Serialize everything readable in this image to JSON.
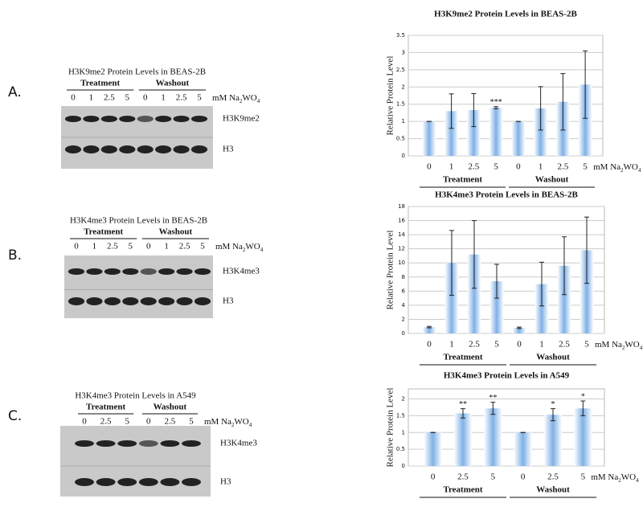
{
  "chart_data": [
    {
      "type": "bar",
      "title": "H3K9me2 Protein Levels in BEAS-2B",
      "ylabel": "Relative Protein Level",
      "categories": [
        "0",
        "1",
        "2.5",
        "5",
        "0",
        "1",
        "2.5",
        "5"
      ],
      "values": [
        1,
        1.3,
        1.33,
        1.4,
        1,
        1.38,
        1.57,
        2.07
      ],
      "errors": [
        0,
        0.5,
        0.48,
        0.03,
        0,
        0.63,
        0.82,
        0.98
      ],
      "annotations": [
        null,
        null,
        null,
        "***",
        null,
        null,
        null,
        null
      ],
      "groups": [
        "Treatment",
        "Washout"
      ],
      "unit": [
        "mM Na",
        "2",
        "WO",
        "4"
      ],
      "color": "#7fb0e6",
      "ylim": [
        0,
        3.5
      ],
      "yticks": [
        0,
        0.5,
        1,
        1.5,
        2,
        2.5,
        3,
        3.5
      ],
      "grid": true
    },
    {
      "type": "bar",
      "title": "H3K4me3 Protein Levels in BEAS-2B",
      "ylabel": "Relative Protein Level",
      "categories": [
        "0",
        "1",
        "2.5",
        "5",
        "0",
        "1",
        "2.5",
        "5"
      ],
      "values": [
        0.9,
        10,
        11.2,
        7.4,
        0.8,
        7,
        9.6,
        11.8
      ],
      "errors": [
        0.1,
        4.6,
        4.8,
        2.4,
        0.1,
        3.1,
        4.1,
        4.7
      ],
      "annotations": [
        null,
        null,
        null,
        null,
        null,
        null,
        null,
        null
      ],
      "groups": [
        "Treatment",
        "Washout"
      ],
      "unit": [
        "mM Na",
        "2",
        "WO",
        "4"
      ],
      "color": "#7fb0e6",
      "ylim": [
        0,
        18
      ],
      "yticks": [
        0,
        2,
        4,
        6,
        8,
        10,
        12,
        14,
        16,
        18
      ],
      "grid": true
    },
    {
      "type": "bar",
      "title": "H3K4me3 Protein Levels in A549",
      "ylabel": "Relative Protein Level",
      "categories": [
        "0",
        "2.5",
        "5",
        "0",
        "2.5",
        "5"
      ],
      "values": [
        1,
        1.57,
        1.72,
        1,
        1.53,
        1.72
      ],
      "errors": [
        0,
        0.14,
        0.18,
        0,
        0.18,
        0.22
      ],
      "annotations": [
        null,
        "**",
        "**",
        null,
        "*",
        "*"
      ],
      "groups": [
        "Treatment",
        "Washout"
      ],
      "unit": [
        "mM Na",
        "2",
        "WO",
        "4"
      ],
      "color": "#7fb0e6",
      "ylim": [
        0,
        2.3
      ],
      "yticks": [
        0,
        0.5,
        1,
        1.5,
        2
      ],
      "grid": true
    }
  ],
  "blots": [
    {
      "letter": "A.",
      "title": "H3K9me2 Protein Levels in BEAS-2B",
      "groups": [
        "Treatment",
        "Washout"
      ],
      "lanes": [
        "0",
        "1",
        "2.5",
        "5",
        "0",
        "1",
        "2.5",
        "5"
      ],
      "unit": [
        "mM Na",
        "2",
        "WO",
        "4"
      ],
      "bands": [
        "H3K9me2",
        "H3"
      ]
    },
    {
      "letter": "B.",
      "title": "H3K4me3 Protein Levels in BEAS-2B",
      "groups": [
        "Treatment",
        "Washout"
      ],
      "lanes": [
        "0",
        "1",
        "2.5",
        "5",
        "0",
        "1",
        "2.5",
        "5"
      ],
      "unit": [
        "mM Na",
        "2",
        "WO",
        "4"
      ],
      "bands": [
        "H3K4me3",
        "H3"
      ]
    },
    {
      "letter": "C.",
      "title": "H3K4me3 Protein Levels in A549",
      "groups": [
        "Treatment",
        "Washout"
      ],
      "lanes": [
        "0",
        "2.5",
        "5",
        "0",
        "2.5",
        "5"
      ],
      "unit": [
        "mM Na",
        "2",
        "WO",
        "4"
      ],
      "bands": [
        "H3K4me3",
        "H3"
      ]
    }
  ]
}
